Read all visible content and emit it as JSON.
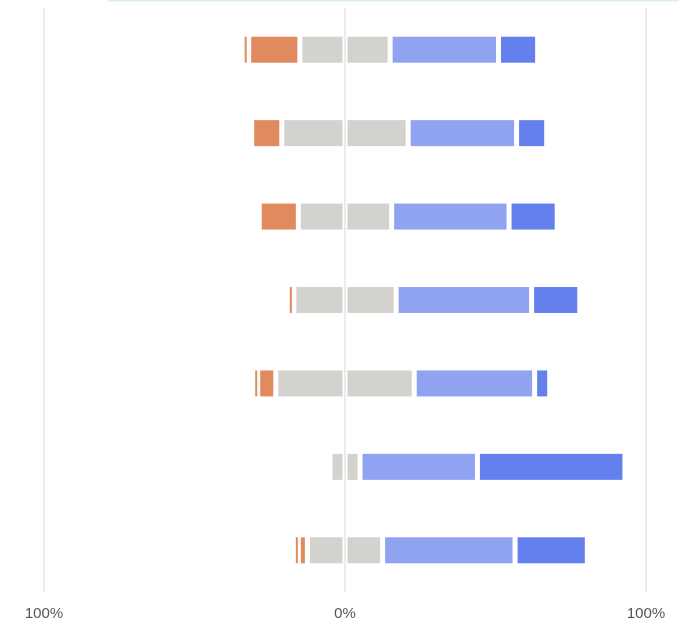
{
  "chart_data": {
    "type": "diverging_bar",
    "categories": [
      null,
      null,
      null,
      null,
      null,
      null,
      null
    ],
    "series": [
      {
        "color": "#e08a5e",
        "values": [
          2,
          0,
          0,
          0,
          1,
          0,
          1
        ]
      },
      {
        "color": "#e08a5e",
        "values": [
          17,
          10,
          13,
          2,
          6,
          0,
          3
        ]
      },
      {
        "color": "#d3d2cf",
        "values": [
          30,
          42,
          31,
          34,
          46,
          10,
          25
        ],
        "neutral": true
      },
      {
        "color": "#8fa3f0",
        "values": [
          36,
          36,
          39,
          45,
          40,
          39,
          44
        ]
      },
      {
        "color": "#6480ec",
        "values": [
          13,
          10,
          16,
          16,
          5,
          49,
          24
        ]
      }
    ],
    "xlim": [
      -100,
      100
    ],
    "xticks": [
      {
        "value": -100,
        "label": "100%"
      },
      {
        "value": 0,
        "label": "0%"
      },
      {
        "value": 100,
        "label": "100%"
      }
    ],
    "grid": true
  }
}
